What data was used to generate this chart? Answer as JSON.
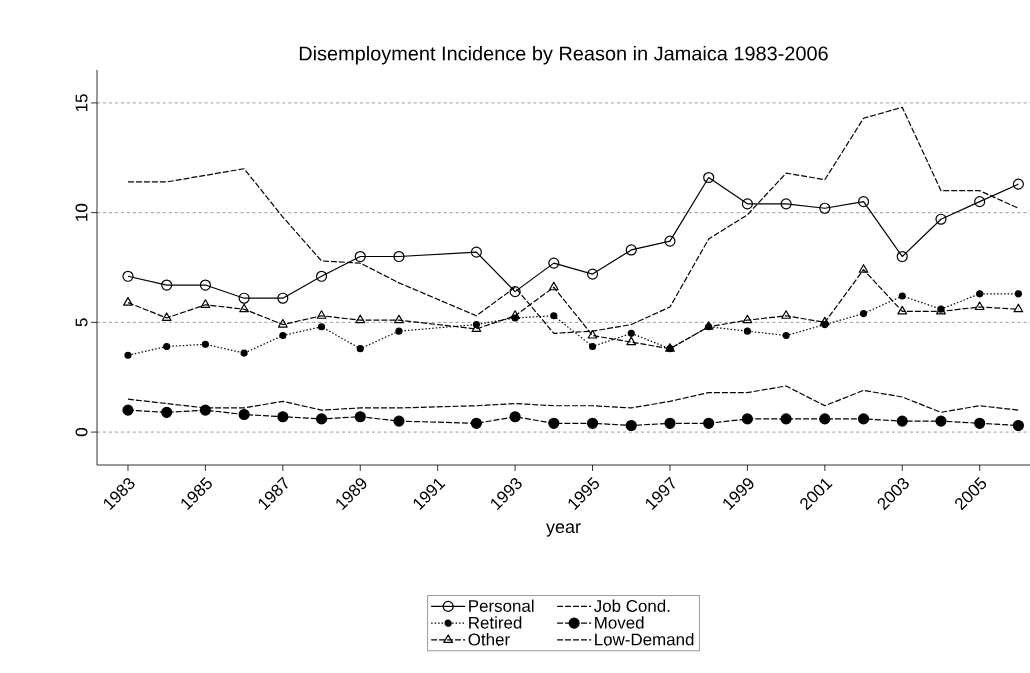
{
  "chart_data": {
    "type": "line",
    "title": "Disemployment Incidence by Reason in Jamaica 1983-2006",
    "xlabel": "year",
    "x": [
      1983,
      1984,
      1985,
      1986,
      1987,
      1988,
      1989,
      1990,
      1992,
      1993,
      1994,
      1995,
      1996,
      1997,
      1998,
      1999,
      2000,
      2001,
      2002,
      2003,
      2004,
      2005,
      2006
    ],
    "series": [
      {
        "name": "Personal",
        "color": "#000000",
        "marker": "circle",
        "line_style": "solid",
        "values": [
          7.1,
          6.7,
          6.7,
          6.1,
          6.1,
          7.1,
          8.0,
          8.0,
          8.2,
          6.4,
          7.7,
          7.2,
          8.3,
          8.7,
          11.6,
          10.4,
          10.4,
          10.2,
          10.5,
          8.0,
          9.7,
          10.5,
          11.3
        ]
      },
      {
        "name": "Retired",
        "color": "#000000",
        "marker": "circle",
        "line_style": "dotted",
        "values": [
          3.5,
          3.9,
          4.0,
          3.6,
          4.4,
          4.8,
          3.8,
          4.6,
          4.9,
          5.2,
          5.3,
          3.9,
          4.5,
          3.8,
          4.8,
          4.6,
          4.4,
          4.9,
          5.4,
          6.2,
          5.6,
          6.3,
          6.3
        ]
      },
      {
        "name": "Other",
        "color": "#000000",
        "marker": "triangle",
        "line_style": "dashed",
        "values": [
          5.9,
          5.2,
          5.8,
          5.6,
          4.9,
          5.3,
          5.1,
          5.1,
          4.7,
          5.3,
          6.6,
          4.4,
          4.1,
          3.8,
          4.8,
          5.1,
          5.3,
          5.0,
          7.4,
          5.5,
          5.5,
          5.7,
          5.6
        ]
      },
      {
        "name": "Job Cond.",
        "color": "#000000",
        "marker": "none",
        "line_style": "dashed",
        "values": [
          1.5,
          1.3,
          1.1,
          1.1,
          1.4,
          1.0,
          1.1,
          1.1,
          1.2,
          1.3,
          1.2,
          1.2,
          1.1,
          1.4,
          1.8,
          1.8,
          2.1,
          1.2,
          1.9,
          1.6,
          0.9,
          1.2,
          1.0
        ]
      },
      {
        "name": "Moved",
        "color": "#000000",
        "marker": "circle",
        "line_style": "dashed",
        "values": [
          1.0,
          0.9,
          1.0,
          0.8,
          0.7,
          0.6,
          0.7,
          0.5,
          0.4,
          0.7,
          0.4,
          0.4,
          0.3,
          0.4,
          0.4,
          0.6,
          0.6,
          0.6,
          0.6,
          0.5,
          0.5,
          0.4,
          0.3
        ]
      },
      {
        "name": "Low-Demand",
        "color": "#000000",
        "marker": "none",
        "line_style": "dashed",
        "values": [
          11.4,
          11.4,
          11.7,
          12.0,
          9.8,
          7.8,
          7.7,
          6.8,
          5.3,
          6.6,
          4.5,
          4.6,
          4.9,
          5.7,
          8.8,
          9.9,
          11.8,
          11.5,
          14.3,
          14.8,
          11.0,
          11.0,
          10.2
        ]
      }
    ],
    "xlim": [
      1982.2,
      2006.3
    ],
    "xticks": [
      1983,
      1985,
      1987,
      1989,
      1991,
      1993,
      1995,
      1997,
      1999,
      2001,
      2003,
      2005
    ],
    "ylim": [
      -1.5,
      16.5
    ],
    "yticks": [
      0,
      5,
      10,
      15
    ],
    "grid": "y",
    "legend": "bottom"
  }
}
